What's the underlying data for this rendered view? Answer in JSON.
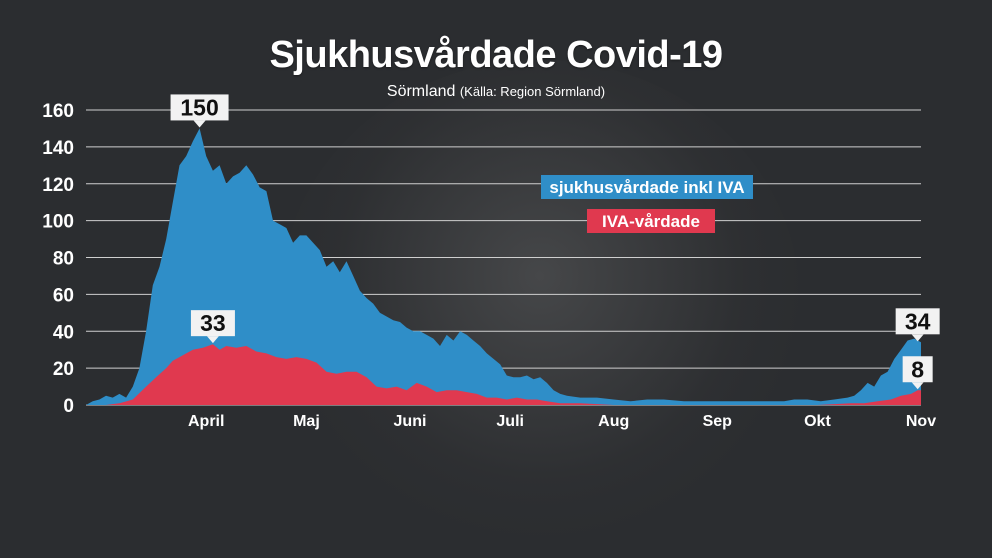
{
  "colors": {
    "hospital": "#2f8ec8",
    "icu": "#e0394f",
    "grid": "#cfcfcf",
    "text": "#ffffff",
    "background": "#2b2d30"
  },
  "chart_data": {
    "type": "area",
    "title": "Sjukhusvårdade Covid-19",
    "subtitle_main": "Sörmland",
    "subtitle_source": "(Källa: Region Sörmland)",
    "xlabel": "",
    "ylabel": "",
    "ylim": [
      0,
      160
    ],
    "yticks": [
      0,
      20,
      40,
      60,
      80,
      100,
      120,
      140,
      160
    ],
    "grid": true,
    "x_start": "2020-03-10",
    "x_end": "2020-11-15",
    "months": [
      {
        "label": "April",
        "date": "2020-04-15"
      },
      {
        "label": "Maj",
        "date": "2020-05-15"
      },
      {
        "label": "Juni",
        "date": "2020-06-15"
      },
      {
        "label": "Juli",
        "date": "2020-07-15"
      },
      {
        "label": "Aug",
        "date": "2020-08-15"
      },
      {
        "label": "Sep",
        "date": "2020-09-15"
      },
      {
        "label": "Okt",
        "date": "2020-10-15"
      },
      {
        "label": "Nov",
        "date": "2020-11-15"
      }
    ],
    "series": [
      {
        "name": "sjukhusvårdade inkl IVA",
        "points": [
          [
            "2020-03-10",
            0
          ],
          [
            "2020-03-12",
            2
          ],
          [
            "2020-03-14",
            3
          ],
          [
            "2020-03-16",
            5
          ],
          [
            "2020-03-18",
            4
          ],
          [
            "2020-03-20",
            6
          ],
          [
            "2020-03-22",
            4
          ],
          [
            "2020-03-24",
            10
          ],
          [
            "2020-03-26",
            20
          ],
          [
            "2020-03-28",
            40
          ],
          [
            "2020-03-30",
            65
          ],
          [
            "2020-04-01",
            75
          ],
          [
            "2020-04-03",
            90
          ],
          [
            "2020-04-05",
            110
          ],
          [
            "2020-04-07",
            130
          ],
          [
            "2020-04-09",
            135
          ],
          [
            "2020-04-11",
            143
          ],
          [
            "2020-04-13",
            150
          ],
          [
            "2020-04-15",
            135
          ],
          [
            "2020-04-17",
            127
          ],
          [
            "2020-04-19",
            130
          ],
          [
            "2020-04-21",
            120
          ],
          [
            "2020-04-23",
            124
          ],
          [
            "2020-04-25",
            126
          ],
          [
            "2020-04-27",
            130
          ],
          [
            "2020-04-29",
            125
          ],
          [
            "2020-05-01",
            118
          ],
          [
            "2020-05-03",
            116
          ],
          [
            "2020-05-05",
            100
          ],
          [
            "2020-05-07",
            98
          ],
          [
            "2020-05-09",
            96
          ],
          [
            "2020-05-11",
            88
          ],
          [
            "2020-05-13",
            92
          ],
          [
            "2020-05-15",
            92
          ],
          [
            "2020-05-17",
            88
          ],
          [
            "2020-05-19",
            84
          ],
          [
            "2020-05-21",
            75
          ],
          [
            "2020-05-23",
            78
          ],
          [
            "2020-05-25",
            72
          ],
          [
            "2020-05-27",
            78
          ],
          [
            "2020-05-29",
            70
          ],
          [
            "2020-05-31",
            62
          ],
          [
            "2020-06-02",
            58
          ],
          [
            "2020-06-04",
            55
          ],
          [
            "2020-06-06",
            50
          ],
          [
            "2020-06-08",
            48
          ],
          [
            "2020-06-10",
            46
          ],
          [
            "2020-06-12",
            45
          ],
          [
            "2020-06-14",
            42
          ],
          [
            "2020-06-16",
            40
          ],
          [
            "2020-06-18",
            40
          ],
          [
            "2020-06-20",
            38
          ],
          [
            "2020-06-22",
            36
          ],
          [
            "2020-06-24",
            32
          ],
          [
            "2020-06-26",
            38
          ],
          [
            "2020-06-28",
            35
          ],
          [
            "2020-06-30",
            40
          ],
          [
            "2020-07-02",
            38
          ],
          [
            "2020-07-04",
            35
          ],
          [
            "2020-07-06",
            32
          ],
          [
            "2020-07-08",
            28
          ],
          [
            "2020-07-10",
            25
          ],
          [
            "2020-07-12",
            22
          ],
          [
            "2020-07-14",
            16
          ],
          [
            "2020-07-16",
            15
          ],
          [
            "2020-07-18",
            15
          ],
          [
            "2020-07-20",
            16
          ],
          [
            "2020-07-22",
            14
          ],
          [
            "2020-07-24",
            15
          ],
          [
            "2020-07-26",
            12
          ],
          [
            "2020-07-28",
            8
          ],
          [
            "2020-07-30",
            6
          ],
          [
            "2020-08-01",
            5
          ],
          [
            "2020-08-05",
            4
          ],
          [
            "2020-08-10",
            4
          ],
          [
            "2020-08-15",
            3
          ],
          [
            "2020-08-20",
            2
          ],
          [
            "2020-08-25",
            3
          ],
          [
            "2020-08-30",
            3
          ],
          [
            "2020-09-05",
            2
          ],
          [
            "2020-09-10",
            2
          ],
          [
            "2020-09-15",
            2
          ],
          [
            "2020-09-20",
            2
          ],
          [
            "2020-09-25",
            2
          ],
          [
            "2020-09-30",
            2
          ],
          [
            "2020-10-05",
            2
          ],
          [
            "2020-10-08",
            3
          ],
          [
            "2020-10-12",
            3
          ],
          [
            "2020-10-16",
            2
          ],
          [
            "2020-10-20",
            3
          ],
          [
            "2020-10-24",
            4
          ],
          [
            "2020-10-26",
            5
          ],
          [
            "2020-10-28",
            8
          ],
          [
            "2020-10-30",
            12
          ],
          [
            "2020-11-01",
            10
          ],
          [
            "2020-11-03",
            16
          ],
          [
            "2020-11-05",
            18
          ],
          [
            "2020-11-07",
            25
          ],
          [
            "2020-11-09",
            30
          ],
          [
            "2020-11-11",
            35
          ],
          [
            "2020-11-13",
            36
          ],
          [
            "2020-11-15",
            34
          ]
        ]
      },
      {
        "name": "IVA-vårdade",
        "points": [
          [
            "2020-03-10",
            0
          ],
          [
            "2020-03-16",
            0
          ],
          [
            "2020-03-20",
            1
          ],
          [
            "2020-03-24",
            3
          ],
          [
            "2020-03-28",
            10
          ],
          [
            "2020-03-31",
            15
          ],
          [
            "2020-04-03",
            20
          ],
          [
            "2020-04-05",
            24
          ],
          [
            "2020-04-07",
            26
          ],
          [
            "2020-04-09",
            28
          ],
          [
            "2020-04-11",
            30
          ],
          [
            "2020-04-14",
            31
          ],
          [
            "2020-04-17",
            33
          ],
          [
            "2020-04-19",
            30
          ],
          [
            "2020-04-21",
            32
          ],
          [
            "2020-04-24",
            31
          ],
          [
            "2020-04-27",
            32
          ],
          [
            "2020-04-30",
            29
          ],
          [
            "2020-05-03",
            28
          ],
          [
            "2020-05-06",
            26
          ],
          [
            "2020-05-09",
            25
          ],
          [
            "2020-05-12",
            26
          ],
          [
            "2020-05-15",
            25
          ],
          [
            "2020-05-18",
            23
          ],
          [
            "2020-05-21",
            18
          ],
          [
            "2020-05-24",
            17
          ],
          [
            "2020-05-27",
            18
          ],
          [
            "2020-05-30",
            18
          ],
          [
            "2020-06-02",
            15
          ],
          [
            "2020-06-05",
            10
          ],
          [
            "2020-06-08",
            9
          ],
          [
            "2020-06-11",
            10
          ],
          [
            "2020-06-14",
            8
          ],
          [
            "2020-06-17",
            12
          ],
          [
            "2020-06-20",
            10
          ],
          [
            "2020-06-23",
            7
          ],
          [
            "2020-06-26",
            8
          ],
          [
            "2020-06-29",
            8
          ],
          [
            "2020-07-02",
            7
          ],
          [
            "2020-07-05",
            6
          ],
          [
            "2020-07-08",
            4
          ],
          [
            "2020-07-11",
            4
          ],
          [
            "2020-07-14",
            3
          ],
          [
            "2020-07-17",
            4
          ],
          [
            "2020-07-20",
            3
          ],
          [
            "2020-07-23",
            3
          ],
          [
            "2020-07-26",
            2
          ],
          [
            "2020-07-30",
            1
          ],
          [
            "2020-08-05",
            1
          ],
          [
            "2020-08-15",
            0
          ],
          [
            "2020-09-15",
            0
          ],
          [
            "2020-10-15",
            0
          ],
          [
            "2020-10-25",
            1
          ],
          [
            "2020-10-29",
            1
          ],
          [
            "2020-11-02",
            2
          ],
          [
            "2020-11-06",
            3
          ],
          [
            "2020-11-09",
            5
          ],
          [
            "2020-11-12",
            6
          ],
          [
            "2020-11-14",
            8
          ],
          [
            "2020-11-15",
            8
          ]
        ]
      }
    ],
    "annotations": [
      {
        "text": "150",
        "date": "2020-04-13",
        "value": 150,
        "series": 0
      },
      {
        "text": "33",
        "date": "2020-04-17",
        "value": 33,
        "series": 1
      },
      {
        "text": "34",
        "date": "2020-11-14",
        "value": 34,
        "series": 0
      },
      {
        "text": "8",
        "date": "2020-11-14",
        "value": 8,
        "series": 1
      }
    ],
    "legend": {
      "placement": "center-right"
    }
  }
}
